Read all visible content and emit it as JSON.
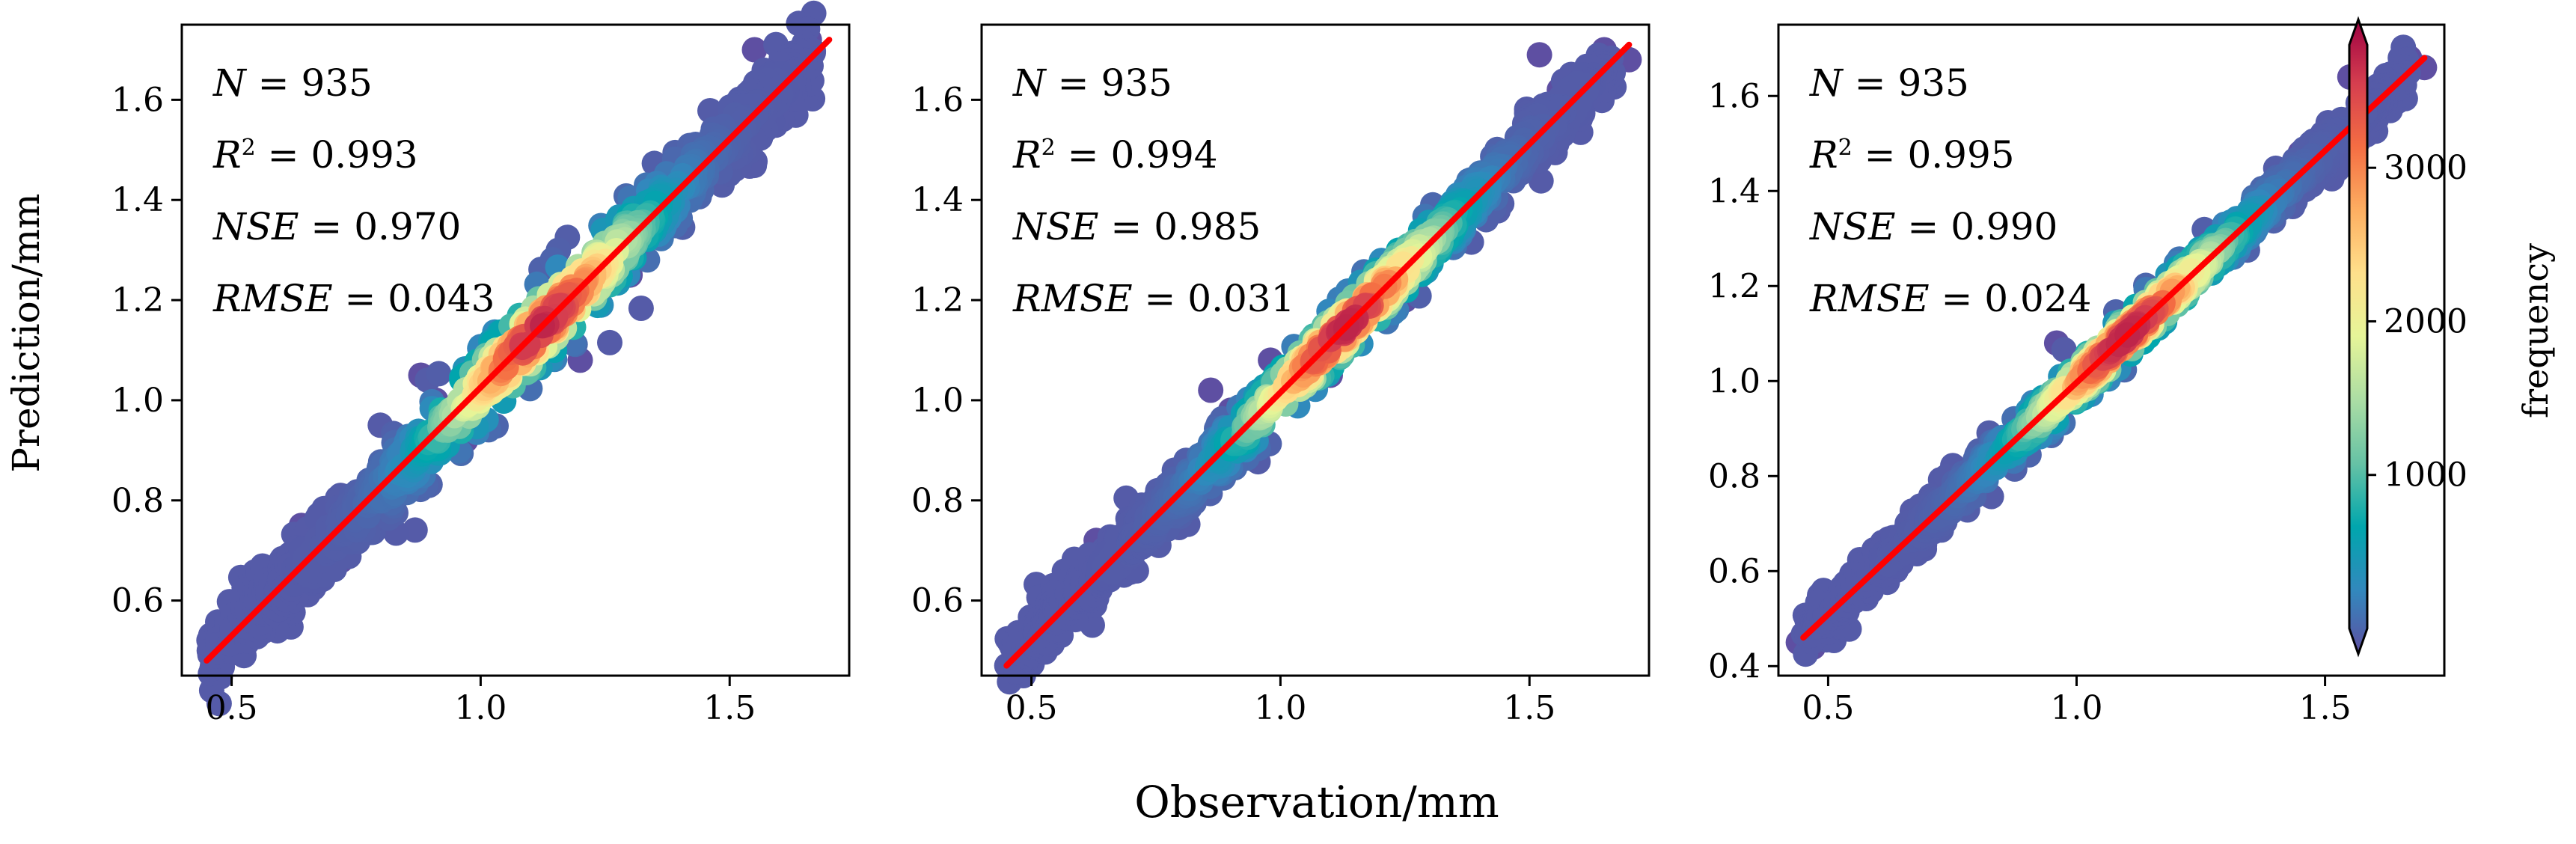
{
  "figure": {
    "xlabel": "Observation/mm",
    "ylabel": "Prediction/mm",
    "colorbar": {
      "label": "frequency",
      "ticks": [
        1000,
        2000,
        3000
      ],
      "tick_labels": [
        "1000",
        "2000",
        "3000"
      ],
      "range": [
        0,
        3800
      ],
      "colormap": "Spectral_r",
      "colors": [
        "#5e4fa2",
        "#3288bd",
        "#00a6ad",
        "#66c2a5",
        "#abdda4",
        "#e6f598",
        "#fee08b",
        "#fdae61",
        "#f46d43",
        "#d53e4f",
        "#9e0142"
      ]
    },
    "fit_line_color": "#ff0000"
  },
  "chart_data": [
    {
      "type": "scatter",
      "panel": "left",
      "stats": {
        "N": "935",
        "R2": "0.993",
        "NSE": "0.970",
        "RMSE": "0.043"
      },
      "xlim": [
        0.4,
        1.74
      ],
      "ylim": [
        0.45,
        1.75
      ],
      "xticks": [
        0.5,
        1.0,
        1.5
      ],
      "xtick_labels": [
        "0.5",
        "1.0",
        "1.5"
      ],
      "yticks": [
        0.6,
        0.8,
        1.0,
        1.2,
        1.4,
        1.6
      ],
      "ytick_labels": [
        "0.6",
        "0.8",
        "1.0",
        "1.2",
        "1.4",
        "1.6"
      ],
      "fit_line": {
        "x": [
          0.45,
          1.7
        ],
        "y": [
          0.48,
          1.72
        ]
      },
      "outliers": [
        [
          0.88,
          1.05
        ],
        [
          0.91,
          1.0
        ],
        [
          0.64,
          0.75
        ],
        [
          0.97,
          0.92
        ],
        [
          1.2,
          1.08
        ],
        [
          0.55,
          0.62
        ],
        [
          1.53,
          1.55
        ],
        [
          1.38,
          1.45
        ],
        [
          1.58,
          1.62
        ],
        [
          1.62,
          1.65
        ],
        [
          1.66,
          1.72
        ],
        [
          1.55,
          1.7
        ],
        [
          1.6,
          1.6
        ],
        [
          0.5,
          0.5
        ],
        [
          0.47,
          0.53
        ],
        [
          0.8,
          0.83
        ],
        [
          1.05,
          1.12
        ],
        [
          1.3,
          1.25
        ],
        [
          0.72,
          0.68
        ]
      ],
      "density": {
        "peak_x": 1.12,
        "peak_count": 3500,
        "peak_spread": 0.13,
        "base_count": 80,
        "scatter_sd": 0.04
      }
    },
    {
      "type": "scatter",
      "panel": "middle",
      "stats": {
        "N": "935",
        "R2": "0.994",
        "NSE": "0.985",
        "RMSE": "0.031"
      },
      "xlim": [
        0.4,
        1.74
      ],
      "ylim": [
        0.45,
        1.75
      ],
      "xticks": [
        0.5,
        1.0,
        1.5
      ],
      "xtick_labels": [
        "0.5",
        "1.0",
        "1.5"
      ],
      "yticks": [
        0.6,
        0.8,
        1.0,
        1.2,
        1.4,
        1.6
      ],
      "ytick_labels": [
        "0.6",
        "0.8",
        "1.0",
        "1.2",
        "1.4",
        "1.6"
      ],
      "fit_line": {
        "x": [
          0.45,
          1.7
        ],
        "y": [
          0.47,
          1.71
        ]
      },
      "outliers": [
        [
          0.86,
          1.02
        ],
        [
          0.9,
          0.98
        ],
        [
          0.98,
          1.08
        ],
        [
          1.02,
          1.06
        ],
        [
          0.63,
          0.72
        ],
        [
          1.52,
          1.69
        ],
        [
          1.56,
          1.62
        ],
        [
          1.65,
          1.7
        ],
        [
          1.7,
          1.68
        ],
        [
          0.47,
          0.5
        ],
        [
          1.4,
          1.45
        ],
        [
          1.25,
          1.2
        ],
        [
          0.75,
          0.73
        ],
        [
          1.1,
          1.05
        ]
      ],
      "density": {
        "peak_x": 1.13,
        "peak_count": 3500,
        "peak_spread": 0.13,
        "base_count": 80,
        "scatter_sd": 0.03
      }
    },
    {
      "type": "scatter",
      "panel": "right",
      "stats": {
        "N": "935",
        "R2": "0.995",
        "NSE": "0.990",
        "RMSE": "0.024"
      },
      "xlim": [
        0.4,
        1.74
      ],
      "ylim": [
        0.38,
        1.75
      ],
      "xticks": [
        0.5,
        1.0,
        1.5
      ],
      "xtick_labels": [
        "0.5",
        "1.0",
        "1.5"
      ],
      "yticks": [
        0.4,
        0.6,
        0.8,
        1.0,
        1.2,
        1.4,
        1.6
      ],
      "ytick_labels": [
        "0.4",
        "0.6",
        "0.8",
        "1.0",
        "1.2",
        "1.4",
        "1.6"
      ],
      "fit_line": {
        "x": [
          0.45,
          1.7
        ],
        "y": [
          0.46,
          1.68
        ]
      },
      "outliers": [
        [
          0.96,
          1.08
        ],
        [
          1.55,
          1.64
        ],
        [
          1.62,
          1.6
        ],
        [
          1.67,
          1.68
        ],
        [
          1.7,
          1.66
        ],
        [
          0.44,
          0.45
        ],
        [
          0.47,
          0.44
        ],
        [
          0.7,
          0.68
        ],
        [
          1.28,
          1.3
        ],
        [
          1.45,
          1.48
        ],
        [
          0.85,
          0.86
        ]
      ],
      "density": {
        "peak_x": 1.1,
        "peak_count": 3500,
        "peak_spread": 0.13,
        "base_count": 80,
        "scatter_sd": 0.025
      }
    }
  ]
}
